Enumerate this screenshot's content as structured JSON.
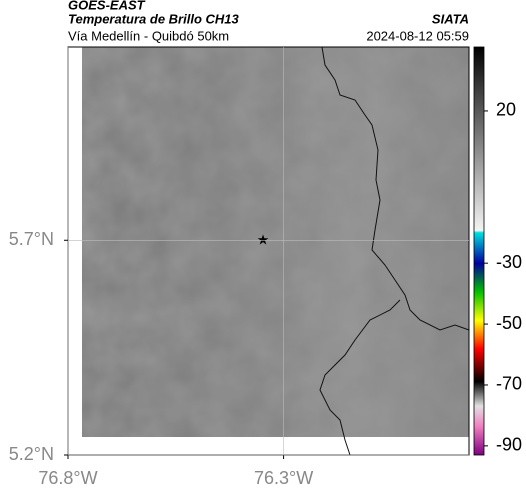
{
  "header": {
    "title": "GOES-EAST",
    "subtitle": "Temperatura de Brillo CH13",
    "source": "SIATA",
    "route": "Vía Medellín - Quibdó 50km",
    "timestamp": "2024-08-12 05:59"
  },
  "map": {
    "lonlim": [
      -76.8,
      -75.87
    ],
    "latlim": [
      5.2,
      6.15
    ],
    "lonticks": [
      {
        "value": -76.8,
        "label": "76.8°W"
      },
      {
        "value": -76.3,
        "label": "76.3°W"
      }
    ],
    "latticks": [
      {
        "value": 5.2,
        "label": "5.2°N"
      },
      {
        "value": 5.7,
        "label": "5.7°N"
      }
    ]
  },
  "colorbar": {
    "lim": [
      41,
      -93
    ],
    "ticks": [
      20,
      -30,
      -50,
      -70,
      -90
    ]
  }
}
